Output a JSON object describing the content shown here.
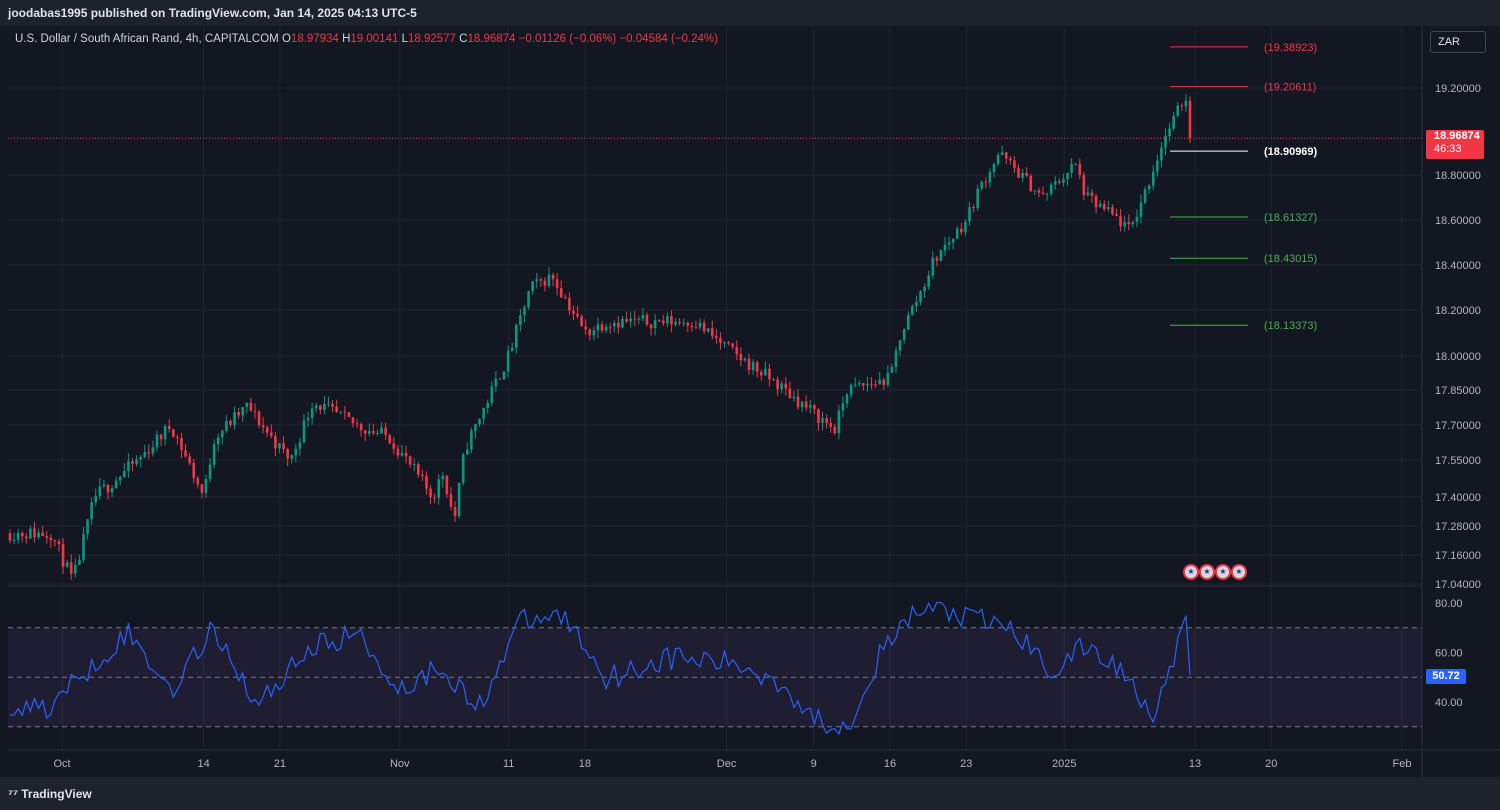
{
  "header": {
    "published_text": "joodabas1995 published on TradingView.com, Jan 14, 2025 04:13 UTC-5"
  },
  "legend": {
    "symbol": "U.S. Dollar / South African Rand, 4h, CAPITALCOM",
    "open_label": "O",
    "open": "18.97934",
    "high_label": "H",
    "high": "19.00141",
    "low_label": "L",
    "low": "18.92577",
    "close_label": "C",
    "close": "18.96874",
    "change": "−0.01126 (−0.06%)",
    "change2": "−0.04584 (−0.24%)"
  },
  "currency_button": "ZAR",
  "price_tag": {
    "price": "18.96874",
    "countdown": "46:33"
  },
  "rsi_tag": "50.72",
  "footer": {
    "logo_text": "TradingView"
  },
  "colors": {
    "up": "#089981",
    "down": "#f23645",
    "rsi": "#2962ff",
    "bg": "#131722",
    "text": "#b2b5be"
  },
  "chart_data": [
    {
      "type": "candlestick",
      "symbol": "U.S. Dollar / South African Rand",
      "timeframe": "4h",
      "price_axis": [
        "19.20000",
        "18.80000",
        "18.60000",
        "18.40000",
        "18.20000",
        "18.00000",
        "17.85000",
        "17.70000",
        "17.55000",
        "17.40000",
        "17.28000",
        "17.16000",
        "17.04000"
      ],
      "time_axis": [
        "Oct",
        "14",
        "21",
        "Nov",
        "11",
        "18",
        "Dec",
        "9",
        "16",
        "23",
        "2025",
        "13",
        "20",
        "Feb"
      ],
      "close_path": {
        "dates": [
          "Sep 30",
          "Oct 1",
          "Oct 2",
          "Oct 4",
          "Oct 8",
          "Oct 11",
          "Oct 14",
          "Oct 15",
          "Oct 18",
          "Oct 21",
          "Oct 22",
          "Oct 24",
          "Oct 28",
          "Oct 31",
          "Nov 4",
          "Nov 5",
          "Nov 6",
          "Nov 7",
          "Nov 11",
          "Nov 13",
          "Nov 15",
          "Nov 18",
          "Nov 20",
          "Nov 25",
          "Nov 28",
          "Dec 2",
          "Dec 5",
          "Dec 9",
          "Dec 11",
          "Dec 12",
          "Dec 16",
          "Dec 17",
          "Dec 19",
          "Dec 20",
          "Dec 23",
          "Dec 24",
          "Dec 26",
          "Dec 30",
          "Jan 2",
          "Jan 3",
          "Jan 6",
          "Jan 7",
          "Jan 9",
          "Jan 10",
          "Jan 12",
          "Jan 13",
          "Jan 14"
        ],
        "values": [
          17.25,
          17.15,
          17.05,
          17.4,
          17.55,
          17.7,
          17.4,
          17.65,
          17.78,
          17.6,
          17.55,
          17.8,
          17.7,
          17.65,
          17.4,
          17.5,
          17.3,
          17.6,
          18.0,
          18.3,
          18.35,
          18.1,
          18.15,
          18.15,
          18.15,
          18.0,
          17.9,
          17.75,
          17.68,
          17.85,
          17.9,
          18.1,
          18.3,
          18.42,
          18.6,
          18.72,
          18.9,
          18.7,
          18.85,
          18.7,
          18.6,
          18.55,
          18.8,
          18.95,
          19.15,
          19.2,
          18.97
        ]
      },
      "levels": [
        {
          "label": "(19.38923)",
          "value": 19.38923,
          "color": "#f23645"
        },
        {
          "label": "(19.20611)",
          "value": 19.20611,
          "color": "#f23645"
        },
        {
          "label": "(18.90969)",
          "value": 18.90969,
          "color": "#ffffff"
        },
        {
          "label": "(18.61327)",
          "value": 18.61327,
          "color": "#4caf50"
        },
        {
          "label": "(18.43015)",
          "value": 18.43015,
          "color": "#4caf50"
        },
        {
          "label": "(18.13373)",
          "value": 18.13373,
          "color": "#4caf50"
        }
      ],
      "last_price": 18.96874
    },
    {
      "type": "line",
      "name": "RSI",
      "y_axis": [
        "80.00",
        "60.00",
        "40.00"
      ],
      "bands": [
        30,
        50,
        70
      ],
      "x": [
        "Sep 30",
        "Oct 3",
        "Oct 7",
        "Oct 11",
        "Oct 15",
        "Oct 19",
        "Oct 23",
        "Oct 28",
        "Nov 1",
        "Nov 5",
        "Nov 8",
        "Nov 12",
        "Nov 16",
        "Nov 20",
        "Nov 26",
        "Dec 2",
        "Dec 6",
        "Dec 9",
        "Dec 12",
        "Dec 15",
        "Dec 18",
        "Dec 20",
        "Dec 23",
        "Dec 27",
        "Dec 31",
        "Jan 3",
        "Jan 7",
        "Jan 9",
        "Jan 11",
        "Jan 12",
        "Jan 13",
        "Jan 14"
      ],
      "values": [
        38,
        52,
        68,
        45,
        70,
        38,
        60,
        68,
        45,
        55,
        36,
        72,
        75,
        50,
        58,
        55,
        48,
        33,
        30,
        58,
        75,
        78,
        74,
        70,
        52,
        63,
        50,
        35,
        55,
        70,
        76,
        51
      ]
    }
  ]
}
